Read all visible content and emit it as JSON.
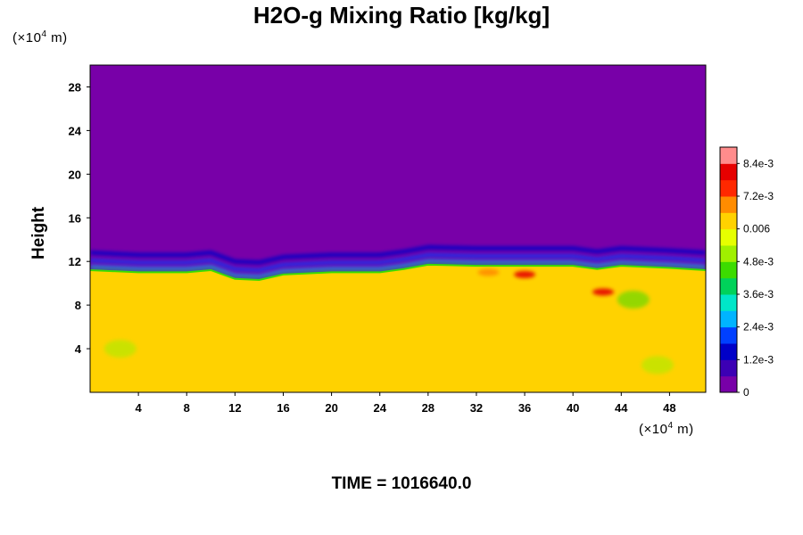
{
  "chart_data": {
    "type": "heatmap",
    "title": "H2O-g Mixing Ratio [kg/kg]",
    "ylabel": "Height",
    "x_unit": {
      "prefix": "(×10",
      "exp": "4",
      "suffix": " m)"
    },
    "y_unit": {
      "prefix": "(×10",
      "exp": "4",
      "suffix": " m)"
    },
    "xlim": [
      0,
      51
    ],
    "ylim": [
      0,
      30
    ],
    "x_ticks": [
      4,
      8,
      12,
      16,
      20,
      24,
      28,
      32,
      36,
      40,
      44,
      48
    ],
    "y_ticks": [
      4,
      8,
      12,
      16,
      20,
      24,
      28
    ],
    "time_label": "TIME = 1016640.0",
    "colorbar": {
      "min": 0,
      "max": 0.009,
      "tick_labels": [
        {
          "value": 0,
          "label": "0"
        },
        {
          "value": 0.0012,
          "label": "1.2e-3"
        },
        {
          "value": 0.0024,
          "label": "2.4e-3"
        },
        {
          "value": 0.0036,
          "label": "3.6e-3"
        },
        {
          "value": 0.0048,
          "label": "4.8e-3"
        },
        {
          "value": 0.006,
          "label": "0.006"
        },
        {
          "value": 0.0072,
          "label": "7.2e-3"
        },
        {
          "value": 0.0084,
          "label": "8.4e-3"
        }
      ]
    },
    "field": {
      "upper_value": 0,
      "lower_value": 0.0063,
      "interface_height": [
        [
          0,
          11.2
        ],
        [
          4,
          11.0
        ],
        [
          8,
          11.0
        ],
        [
          10,
          11.2
        ],
        [
          12,
          10.4
        ],
        [
          14,
          10.3
        ],
        [
          16,
          10.8
        ],
        [
          20,
          11.0
        ],
        [
          24,
          11.0
        ],
        [
          26,
          11.3
        ],
        [
          28,
          11.7
        ],
        [
          32,
          11.6
        ],
        [
          36,
          11.6
        ],
        [
          40,
          11.6
        ],
        [
          42,
          11.3
        ],
        [
          44,
          11.6
        ],
        [
          48,
          11.4
        ],
        [
          51,
          11.2
        ]
      ],
      "features": [
        {
          "kind": "moist_patch",
          "x": 36,
          "y": 10.8,
          "value": 0.0084
        },
        {
          "kind": "moist_patch",
          "x": 42.5,
          "y": 9.2,
          "value": 0.0082
        },
        {
          "kind": "moist_patch",
          "x": 33,
          "y": 11.0,
          "value": 0.0072
        },
        {
          "kind": "dry_filament",
          "x": 45,
          "y": 8.5,
          "value": 0.0045
        },
        {
          "kind": "dry_filament",
          "x": 2.5,
          "y": 4.0,
          "value": 0.005
        },
        {
          "kind": "dry_filament",
          "x": 47,
          "y": 2.5,
          "value": 0.0053
        }
      ]
    }
  },
  "colors": {
    "colormap": [
      "#7800a8",
      "#3c00b4",
      "#0000c8",
      "#0040ff",
      "#00b4ff",
      "#00e6c8",
      "#00d25a",
      "#3cdc00",
      "#a0f000",
      "#e6ff00",
      "#ffd200",
      "#ff8c00",
      "#ff2800",
      "#e60000",
      "#ff8c8c"
    ]
  }
}
